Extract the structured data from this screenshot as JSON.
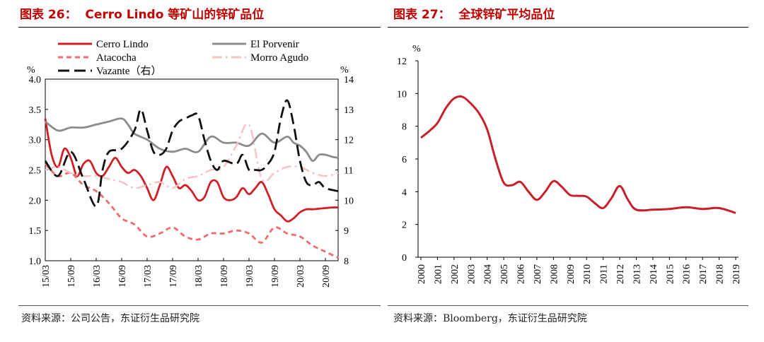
{
  "left": {
    "title": "图表 26：  Cerro Lindo 等矿山的锌矿品位",
    "source": "资料来源：公司公告，东证衍生品研究院"
  },
  "right": {
    "title": "图表 27：  全球锌矿平均品位",
    "source": "资料来源：Bloomberg，东证衍生品研究院"
  },
  "chart_data": [
    {
      "type": "line",
      "title": "Cerro Lindo 等矿山的锌矿品位",
      "ylabel": "%",
      "ylabel_right": "%",
      "x_ticks": [
        "15/03",
        "15/09",
        "16/03",
        "16/09",
        "17/03",
        "17/09",
        "18/03",
        "18/09",
        "19/03",
        "19/09",
        "20/03",
        "20/09"
      ],
      "ylim": [
        1.0,
        4.0
      ],
      "yticks": [
        "1.0",
        "1.5",
        "2.0",
        "2.5",
        "3.0",
        "3.5",
        "4.0"
      ],
      "ylim_right": [
        8,
        14
      ],
      "yticks_right": [
        "8",
        "9",
        "10",
        "11",
        "12",
        "13",
        "14"
      ],
      "grid": false,
      "legend": [
        {
          "name": "Cerro Lindo",
          "color": "#d21f26",
          "dash": "solid"
        },
        {
          "name": "El Porvenir",
          "color": "#8c8c8c",
          "dash": "solid"
        },
        {
          "name": "Atacocha",
          "color": "#f26b6b",
          "dash": "dashed"
        },
        {
          "name": "Morro Agudo",
          "color": "#f7c4c4",
          "dash": "dashdot"
        },
        {
          "name": "Vazante（右）",
          "color": "#111111",
          "dash": "longdash"
        }
      ],
      "series": [
        {
          "name": "Cerro Lindo",
          "axis": "left",
          "x": [
            0,
            0.5,
            1,
            1.5,
            2,
            2.5,
            3,
            3.5,
            4,
            4.5,
            5,
            5.5,
            6,
            6.5,
            7,
            7.5,
            8,
            8.5,
            9,
            9.5,
            10,
            10.5,
            11,
            11.5,
            12,
            12.5,
            13,
            13.5,
            14,
            14.5,
            15,
            15.5,
            16,
            16.5,
            17,
            17.5,
            18,
            18.5,
            19,
            19.5,
            20,
            20.5,
            21,
            21.5,
            22,
            22.5,
            23
          ],
          "values": [
            3.35,
            2.75,
            2.55,
            2.85,
            2.7,
            2.4,
            2.6,
            2.65,
            2.45,
            2.4,
            2.55,
            2.7,
            2.55,
            2.45,
            2.5,
            2.4,
            2.2,
            2.0,
            2.25,
            2.55,
            2.4,
            2.2,
            2.25,
            2.15,
            2.0,
            2.05,
            2.3,
            2.3,
            2.05,
            2.0,
            2.05,
            2.2,
            2.1,
            2.2,
            2.3,
            2.1,
            1.85,
            1.75,
            1.65,
            1.7,
            1.8,
            1.85,
            1.85,
            1.86,
            1.87,
            1.88,
            1.88
          ]
        },
        {
          "name": "El Porvenir",
          "axis": "left",
          "x": [
            0,
            1,
            2,
            3,
            4,
            5,
            6,
            6.5,
            7,
            8,
            9,
            10,
            11,
            12,
            13,
            14,
            15,
            16,
            17,
            18,
            19,
            19.5,
            20,
            20.5,
            21,
            21.5,
            22,
            22.5,
            23
          ],
          "values": [
            3.3,
            3.15,
            3.2,
            3.2,
            3.25,
            3.3,
            3.35,
            3.25,
            3.1,
            3.0,
            2.85,
            2.8,
            2.85,
            2.8,
            3.05,
            2.95,
            2.95,
            2.9,
            3.1,
            2.95,
            3.05,
            2.95,
            2.9,
            2.8,
            2.65,
            2.75,
            2.75,
            2.72,
            2.7
          ]
        },
        {
          "name": "Atacocha",
          "axis": "left",
          "x": [
            0,
            1,
            2,
            3,
            4,
            5,
            6,
            7,
            8,
            9,
            10,
            11,
            12,
            13,
            14,
            15,
            16,
            17,
            18,
            19,
            20,
            21,
            22,
            23
          ],
          "values": [
            2.6,
            2.4,
            2.45,
            2.25,
            2.15,
            1.95,
            1.7,
            1.6,
            1.4,
            1.45,
            1.55,
            1.4,
            1.35,
            1.45,
            1.45,
            1.5,
            1.45,
            1.3,
            1.55,
            1.45,
            1.4,
            1.25,
            1.15,
            1.05
          ]
        },
        {
          "name": "Morro Agudo",
          "axis": "left",
          "x": [
            0,
            1,
            2,
            3,
            4,
            5,
            6,
            7,
            8,
            9,
            10,
            11,
            12,
            13,
            14,
            15,
            16,
            17,
            18,
            19,
            20,
            21,
            22,
            23
          ],
          "values": [
            2.5,
            2.55,
            2.45,
            2.4,
            2.4,
            2.35,
            2.3,
            2.2,
            2.25,
            2.3,
            2.2,
            2.35,
            2.4,
            2.5,
            2.55,
            2.9,
            3.25,
            2.35,
            2.45,
            2.55,
            2.55,
            2.45,
            2.4,
            2.45
          ]
        },
        {
          "name": "Vazante（右）",
          "axis": "right",
          "x": [
            0,
            1,
            2,
            3,
            4,
            4.5,
            5,
            6,
            7,
            7.5,
            8,
            8.5,
            9,
            9.5,
            10,
            10.5,
            11,
            11.5,
            12,
            12.5,
            13,
            13.5,
            14,
            15,
            15.5,
            16,
            16.5,
            17,
            17.5,
            18,
            18.5,
            19,
            19.5,
            20,
            20.5,
            21,
            21.5,
            22,
            23
          ],
          "values": [
            11.3,
            10.8,
            11.6,
            10.7,
            9.8,
            11.0,
            11.6,
            11.7,
            12.3,
            13.0,
            12.3,
            11.6,
            11.5,
            11.7,
            12.3,
            12.6,
            12.7,
            12.8,
            12.8,
            12.0,
            11.3,
            11.0,
            11.3,
            11.2,
            11.5,
            11.0,
            11.0,
            11.0,
            11.2,
            11.6,
            12.7,
            13.3,
            12.5,
            11.3,
            10.6,
            10.5,
            10.6,
            10.4,
            10.3
          ]
        }
      ]
    },
    {
      "type": "line",
      "title": "全球锌矿平均品位",
      "ylabel": "%",
      "categories": [
        "2000",
        "2001",
        "2002",
        "2003",
        "2004",
        "2005",
        "2006",
        "2007",
        "2008",
        "2009",
        "2010",
        "2011",
        "2012",
        "2013",
        "2014",
        "2015",
        "2016",
        "2017",
        "2018",
        "2019"
      ],
      "ylim": [
        0,
        12
      ],
      "yticks": [
        "0",
        "2",
        "4",
        "6",
        "8",
        "10",
        "12"
      ],
      "grid": false,
      "series": [
        {
          "name": "",
          "color": "#c8202a",
          "x": [
            0,
            0.5,
            1,
            1.5,
            2,
            2.5,
            3,
            3.5,
            4,
            4.5,
            5,
            5.5,
            6,
            6.5,
            7,
            7.5,
            8,
            8.5,
            9,
            9.5,
            10,
            10.5,
            11,
            11.5,
            12,
            12.5,
            13,
            14,
            15,
            16,
            17,
            18,
            19
          ],
          "values": [
            7.3,
            7.7,
            8.2,
            9.1,
            9.7,
            9.8,
            9.4,
            8.8,
            7.8,
            6.0,
            4.55,
            4.4,
            4.6,
            4.0,
            3.5,
            4.0,
            4.65,
            4.3,
            3.8,
            3.75,
            3.7,
            3.3,
            3.0,
            3.6,
            4.35,
            3.5,
            2.9,
            2.9,
            2.95,
            3.05,
            2.95,
            3.0,
            2.7
          ]
        }
      ]
    }
  ]
}
